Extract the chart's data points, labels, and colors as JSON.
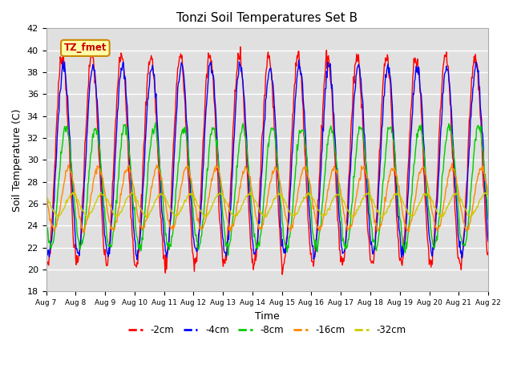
{
  "title": "Tonzi Soil Temperatures Set B",
  "xlabel": "Time",
  "ylabel": "Soil Temperature (C)",
  "ylim": [
    18,
    42
  ],
  "yticks": [
    18,
    20,
    22,
    24,
    26,
    28,
    30,
    32,
    34,
    36,
    38,
    40,
    42
  ],
  "legend_label": "TZ_fmet",
  "colors": {
    "-2cm": "#ff0000",
    "-4cm": "#0000ff",
    "-8cm": "#00cc00",
    "-16cm": "#ff8800",
    "-32cm": "#cccc00"
  },
  "background_color": "#e0e0e0",
  "n_points": 720,
  "params": {
    "-2cm": {
      "mean": 30.0,
      "amp": 9.5,
      "phase": 0.0,
      "noise": 0.4
    },
    "-4cm": {
      "mean": 30.0,
      "amp": 8.5,
      "phase": 0.04,
      "noise": 0.3
    },
    "-8cm": {
      "mean": 27.5,
      "amp": 5.5,
      "phase": 0.12,
      "noise": 0.25
    },
    "-16cm": {
      "mean": 26.5,
      "amp": 2.8,
      "phase": 0.22,
      "noise": 0.15
    },
    "-32cm": {
      "mean": 25.9,
      "amp": 1.0,
      "phase": 0.35,
      "noise": 0.08
    }
  }
}
